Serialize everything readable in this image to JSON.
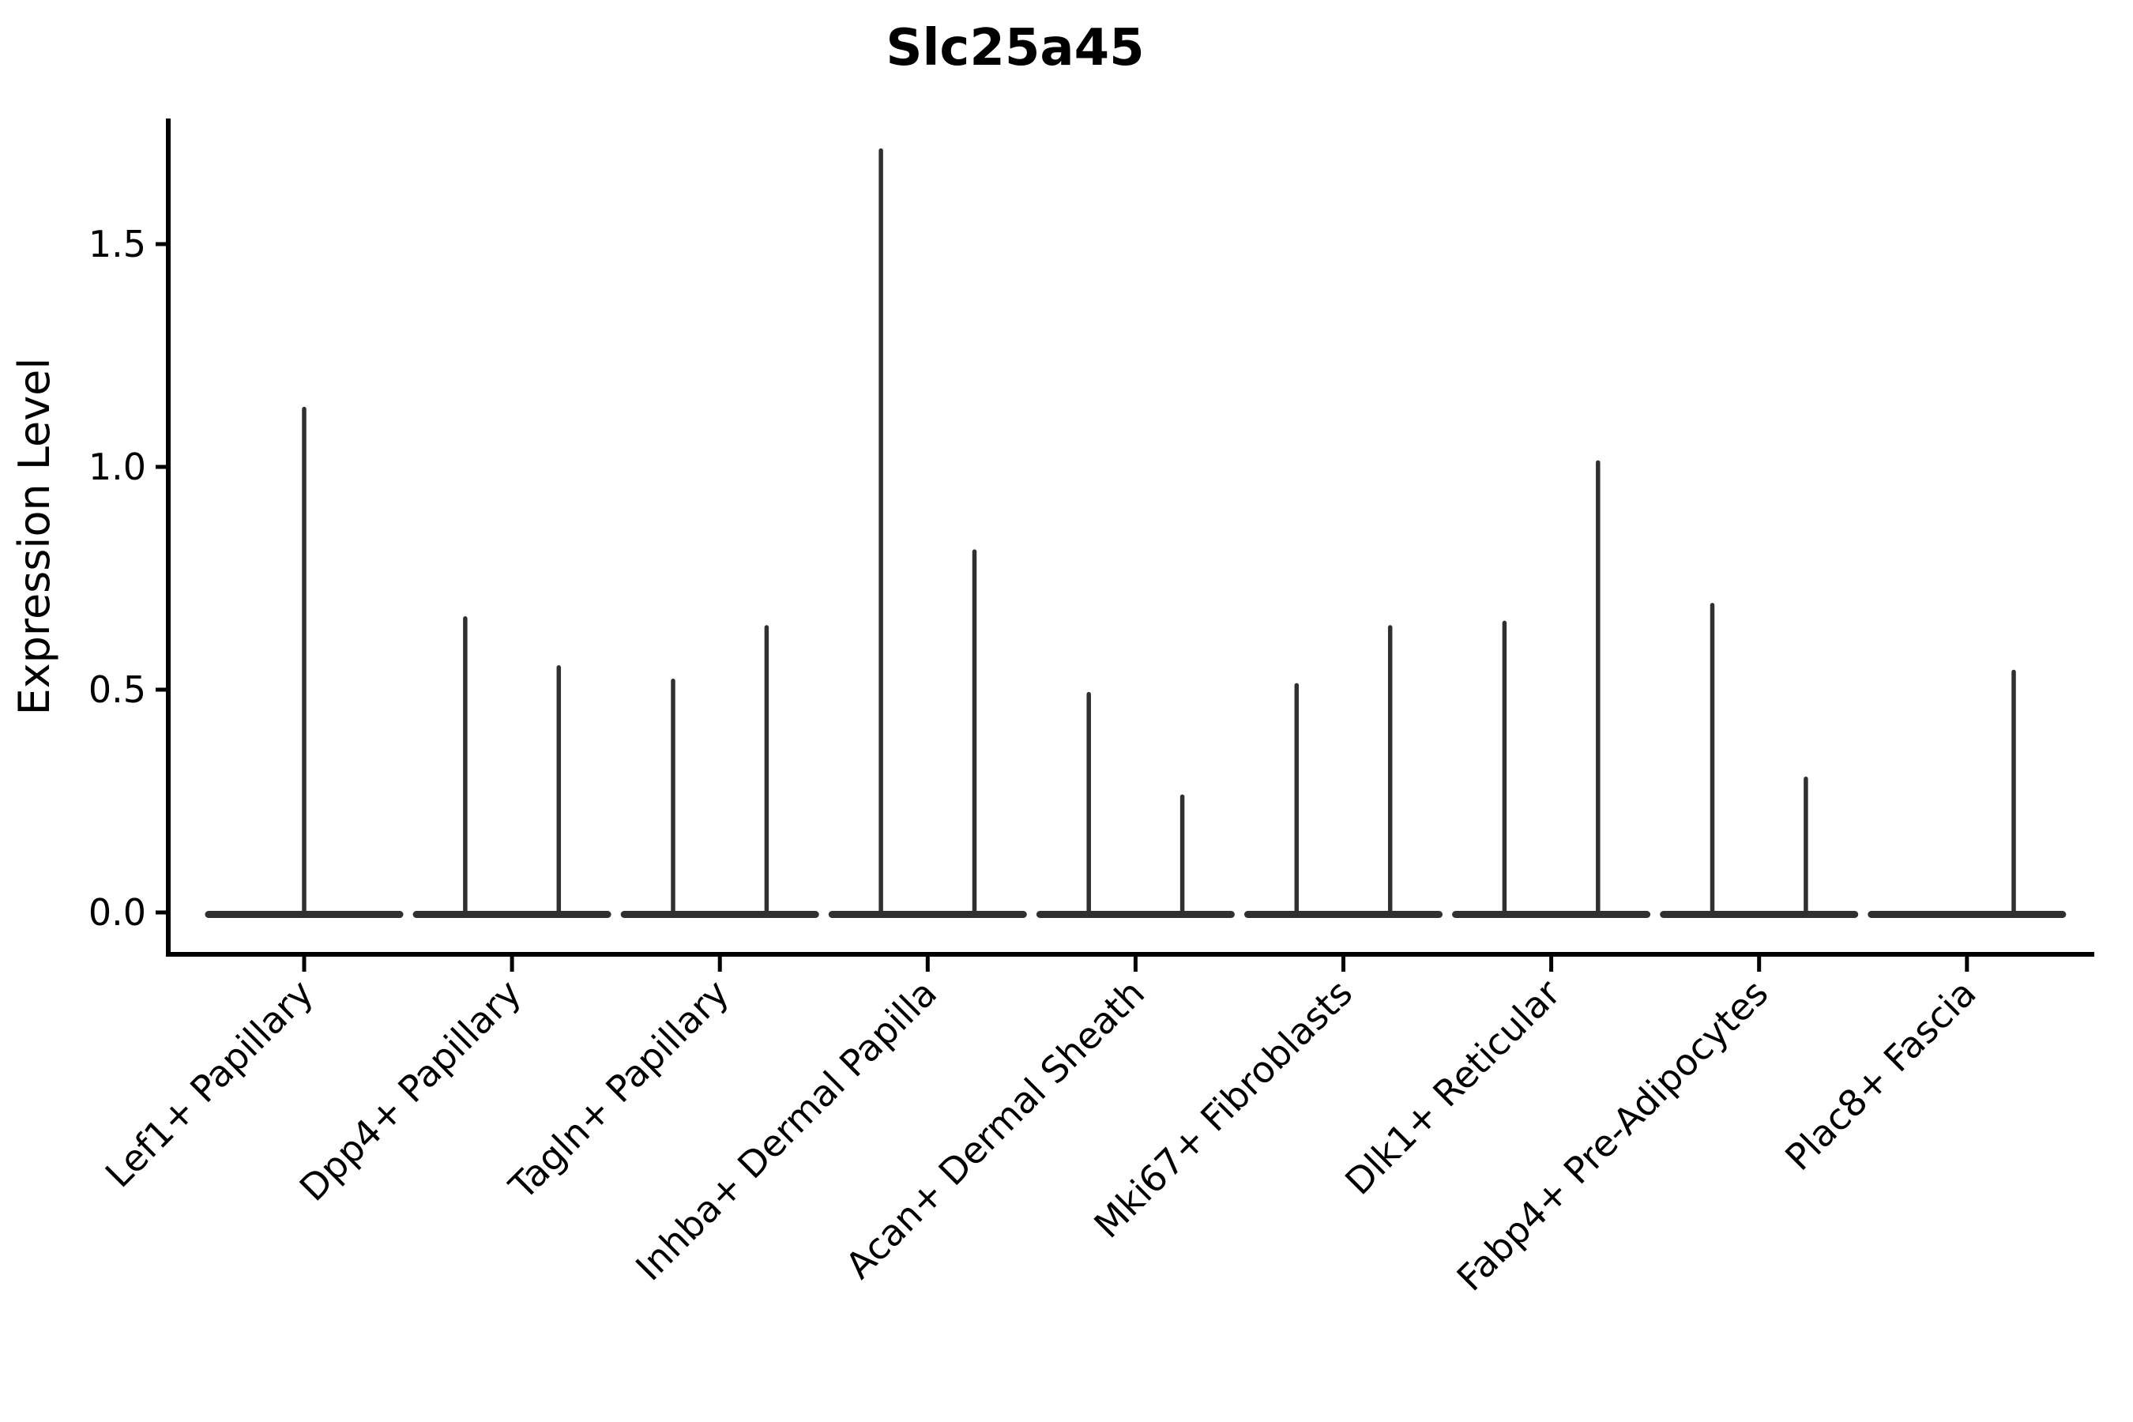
{
  "figure": {
    "title": "Slc25a45",
    "y_axis_label": "Expression Level"
  },
  "chart_data": {
    "type": "violin",
    "title": "Slc25a45",
    "xlabel": "",
    "ylabel": "Expression Level",
    "categories": [
      "Lef1+ Papillary",
      "Dpp4+ Papillary",
      "Tagln+ Papillary",
      "Inhba+ Dermal Papilla",
      "Acan+ Dermal Sheath",
      "Mki67+ Fibroblasts",
      "Dlk1+ Reticular",
      "Fabp4+ Pre-Adipocytes",
      "Plac8+ Fascia"
    ],
    "yticks": [
      0.0,
      0.5,
      1.0,
      1.5
    ],
    "ytick_labels": [
      "0.0",
      "0.5",
      "1.0",
      "1.5"
    ],
    "ylim": [
      -0.09,
      1.79
    ],
    "grid": false,
    "legend": "none",
    "x_label_rotation_deg": 45,
    "style": {
      "violin_color": "#303030",
      "axis_color": "#000000",
      "text_color": "#000000",
      "background": "#ffffff"
    },
    "violins": [
      {
        "category": "Lef1+ Papillary",
        "baseline_value": 0.0,
        "spikes": [
          {
            "offset_frac": 0.0,
            "max_expression": 1.13
          }
        ]
      },
      {
        "category": "Dpp4+ Papillary",
        "baseline_value": 0.0,
        "spikes": [
          {
            "offset_frac": -0.225,
            "max_expression": 0.66
          },
          {
            "offset_frac": 0.225,
            "max_expression": 0.55
          }
        ]
      },
      {
        "category": "Tagln+ Papillary",
        "baseline_value": 0.0,
        "spikes": [
          {
            "offset_frac": -0.225,
            "max_expression": 0.52
          },
          {
            "offset_frac": 0.225,
            "max_expression": 0.64
          }
        ]
      },
      {
        "category": "Inhba+ Dermal Papilla",
        "baseline_value": 0.0,
        "spikes": [
          {
            "offset_frac": -0.225,
            "max_expression": 1.71
          },
          {
            "offset_frac": 0.225,
            "max_expression": 0.81
          }
        ]
      },
      {
        "category": "Acan+ Dermal Sheath",
        "baseline_value": 0.0,
        "spikes": [
          {
            "offset_frac": -0.225,
            "max_expression": 0.49
          },
          {
            "offset_frac": 0.225,
            "max_expression": 0.26
          }
        ]
      },
      {
        "category": "Mki67+ Fibroblasts",
        "baseline_value": 0.0,
        "spikes": [
          {
            "offset_frac": -0.225,
            "max_expression": 0.51
          },
          {
            "offset_frac": 0.225,
            "max_expression": 0.64
          }
        ]
      },
      {
        "category": "Dlk1+ Reticular",
        "baseline_value": 0.0,
        "spikes": [
          {
            "offset_frac": -0.225,
            "max_expression": 0.65
          },
          {
            "offset_frac": 0.225,
            "max_expression": 1.01
          }
        ]
      },
      {
        "category": "Fabp4+ Pre-Adipocytes",
        "baseline_value": 0.0,
        "spikes": [
          {
            "offset_frac": -0.225,
            "max_expression": 0.69
          },
          {
            "offset_frac": 0.225,
            "max_expression": 0.3
          }
        ]
      },
      {
        "category": "Plac8+ Fascia",
        "baseline_value": 0.0,
        "spikes": [
          {
            "offset_frac": 0.225,
            "max_expression": 0.54
          }
        ]
      }
    ],
    "baseline_halfwidth_frac": 0.46
  }
}
